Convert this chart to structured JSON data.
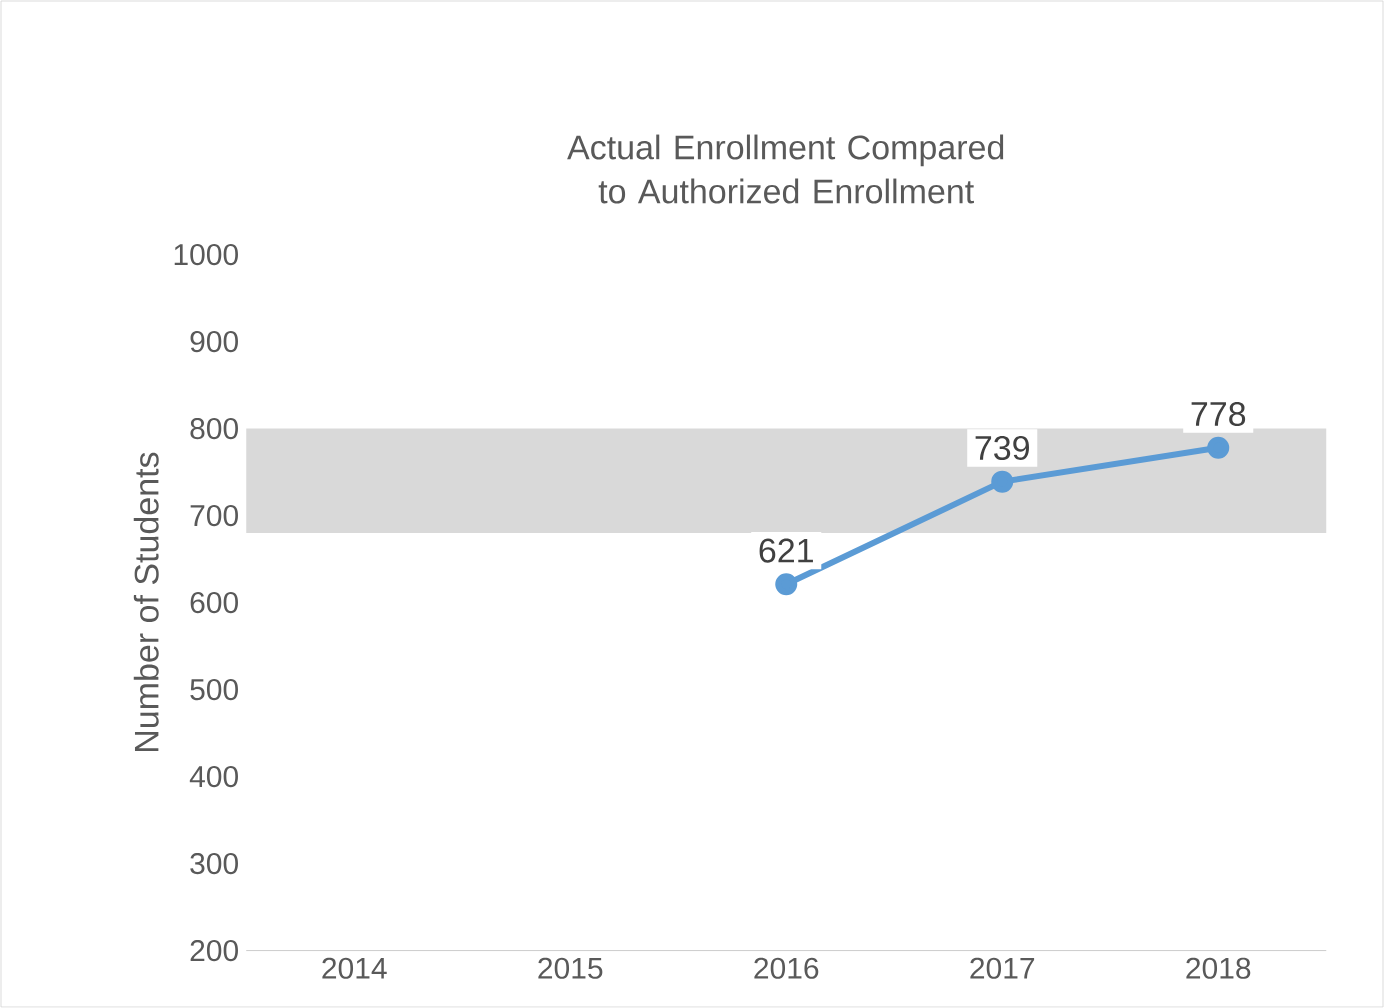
{
  "chart_data": {
    "type": "line",
    "title": "Actual Enrollment Compared to Authorized Enrollment",
    "ylabel": "Number of Students",
    "categories": [
      "2014",
      "2015",
      "2016",
      "2017",
      "2018"
    ],
    "values": [
      null,
      null,
      621,
      739,
      778
    ],
    "color": "#5b9bd5",
    "marker": "circle",
    "data_labels": true,
    "ylim": [
      200,
      1000
    ],
    "yticks": [
      200,
      300,
      400,
      500,
      600,
      700,
      800,
      900,
      1000
    ],
    "bands": [
      {
        "axis": "y",
        "from": 680,
        "to": 800,
        "color": "#d9d9d9"
      }
    ]
  }
}
